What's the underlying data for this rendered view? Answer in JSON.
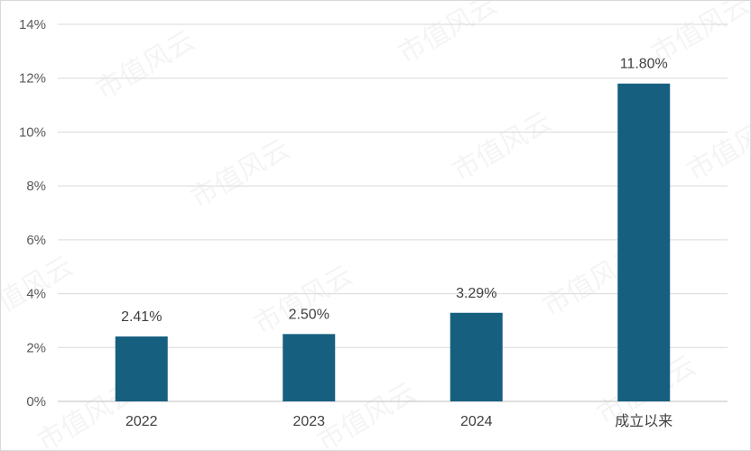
{
  "watermark": "市值风云",
  "chart_data": {
    "type": "bar",
    "categories": [
      "2022",
      "2023",
      "2024",
      "成立以来"
    ],
    "values": [
      2.41,
      2.5,
      3.29,
      11.8
    ],
    "data_labels": [
      "2.41%",
      "2.50%",
      "3.29%",
      "11.80%"
    ],
    "ylim": [
      0,
      14
    ],
    "y_ticks": [
      0,
      2,
      4,
      6,
      8,
      10,
      12,
      14
    ],
    "y_tick_labels": [
      "0%",
      "2%",
      "4%",
      "6%",
      "8%",
      "10%",
      "12%",
      "14%"
    ],
    "grid": true,
    "bar_color": "#175f7f",
    "title": "",
    "xlabel": "",
    "ylabel": ""
  }
}
